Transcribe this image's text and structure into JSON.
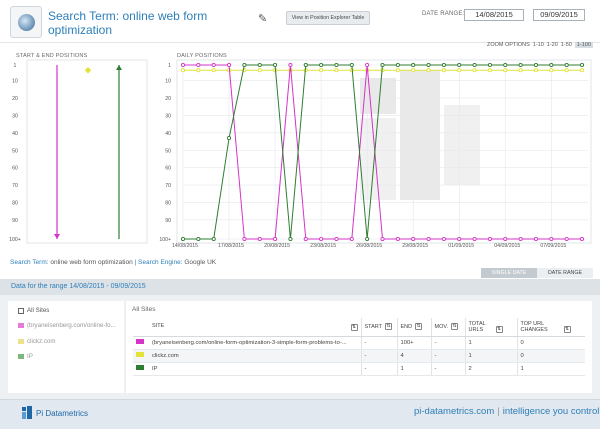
{
  "header": {
    "title_prefix": "Search Term: ",
    "title_term": "online web form optimization",
    "explorer_button": "View in Position Explorer Table",
    "date_range_label": "DATE RANGE:",
    "date_from": "14/08/2015",
    "date_to": "09/09/2015"
  },
  "charts": {
    "left_label": "START & END POSITIONS",
    "right_label": "DAILY POSITIONS",
    "zoom_label": "ZOOM OPTIONS",
    "zoom_options": [
      "1-10",
      "1-20",
      "1-50",
      "1-100"
    ],
    "zoom_selected": "1-100"
  },
  "chart_data": [
    {
      "type": "line",
      "title": "START & END POSITIONS",
      "y_ticks": [
        "1",
        "10",
        "20",
        "30",
        "40",
        "50",
        "60",
        "70",
        "80",
        "90",
        "100+"
      ],
      "ylim": [
        1,
        101
      ],
      "y_inverted": true,
      "series": [
        {
          "name": "IP",
          "start": 101,
          "end": 1,
          "color": "#2e7d32"
        },
        {
          "name": "clickz.com",
          "start": 4,
          "end": 4,
          "color": "#e2e23a"
        },
        {
          "name": "(bryaneisenberg.com/online-fo...",
          "start": 1,
          "end": 101,
          "color": "#d633c8"
        }
      ]
    },
    {
      "type": "line",
      "title": "DAILY POSITIONS",
      "y_ticks": [
        "1",
        "10",
        "20",
        "30",
        "40",
        "50",
        "60",
        "70",
        "80",
        "90",
        "100+"
      ],
      "x_ticks": [
        "14/08/2015",
        "17/08/2015",
        "20/08/2015",
        "23/08/2015",
        "26/08/2015",
        "29/08/2015",
        "01/09/2015",
        "04/09/2015",
        "07/09/2015"
      ],
      "ylim": [
        1,
        101
      ],
      "y_inverted": true,
      "grid": true,
      "dates": [
        "14/08/2015",
        "15/08/2015",
        "16/08/2015",
        "17/08/2015",
        "18/08/2015",
        "19/08/2015",
        "20/08/2015",
        "21/08/2015",
        "22/08/2015",
        "23/08/2015",
        "24/08/2015",
        "25/08/2015",
        "26/08/2015",
        "27/08/2015",
        "28/08/2015",
        "29/08/2015",
        "30/08/2015",
        "31/08/2015",
        "01/09/2015",
        "02/09/2015",
        "03/09/2015",
        "04/09/2015",
        "05/09/2015",
        "06/09/2015",
        "07/09/2015",
        "08/09/2015",
        "09/09/2015"
      ],
      "series": [
        {
          "name": "clickz.com",
          "color": "#e2e23a",
          "values": [
            4,
            4,
            4,
            4,
            4,
            4,
            4,
            4,
            4,
            4,
            4,
            4,
            4,
            4,
            4,
            4,
            4,
            4,
            4,
            4,
            4,
            4,
            4,
            4,
            4,
            4,
            4
          ]
        },
        {
          "name": "(bryaneisenberg.com/online-fo...",
          "color": "#d633c8",
          "values": [
            1,
            1,
            1,
            1,
            101,
            101,
            101,
            1,
            101,
            101,
            101,
            101,
            1,
            101,
            101,
            101,
            101,
            101,
            101,
            101,
            101,
            101,
            101,
            101,
            101,
            101,
            101
          ]
        },
        {
          "name": "IP",
          "color": "#2e7d32",
          "values": [
            101,
            101,
            101,
            43,
            1,
            1,
            1,
            101,
            1,
            1,
            1,
            1,
            101,
            1,
            1,
            1,
            1,
            1,
            1,
            1,
            1,
            1,
            1,
            1,
            1,
            1,
            1
          ]
        }
      ]
    }
  ],
  "search_info": {
    "term_key": "Search Term:",
    "term_value": "online web form optimization",
    "engine_key": "| Search Engine:",
    "engine_value": "Google UK"
  },
  "tabs": {
    "single_date": "SINGLE DATE",
    "date_range": "DATE RANGE"
  },
  "range_text": "Data for the range 14/08/2015 - 09/09/2015",
  "sites": {
    "all_label": "All Sites",
    "items": [
      {
        "label": "(bryaneisenberg.com/online-fo...",
        "color": "#d633c8"
      },
      {
        "label": "clickz.com",
        "color": "#e2e23a"
      },
      {
        "label": "IP",
        "color": "#3a8a3a"
      }
    ]
  },
  "table": {
    "title": "All Sites",
    "columns": [
      "SITE",
      "START",
      "END",
      "MOV.",
      "TOTAL URLS",
      "TOP URL CHANGES"
    ],
    "rows": [
      {
        "color": "#d633c8",
        "site": "(bryaneisenberg.com/online-form-optimization-3-simple-form-problems-to-...",
        "start": "-",
        "end": "100+",
        "mov": "-",
        "total": "1",
        "changes": "0"
      },
      {
        "color": "#e2e23a",
        "site": "clickz.com",
        "start": "-",
        "end": "4",
        "mov": "-",
        "total": "1",
        "changes": "0"
      },
      {
        "color": "#2e7d32",
        "site": "IP",
        "start": "-",
        "end": "1",
        "mov": "-",
        "total": "2",
        "changes": "1"
      }
    ]
  },
  "footer": {
    "brand": "Pi Datametrics",
    "url": "pi-datametrics.com",
    "separator": "|",
    "tagline": "intelligence you control"
  }
}
